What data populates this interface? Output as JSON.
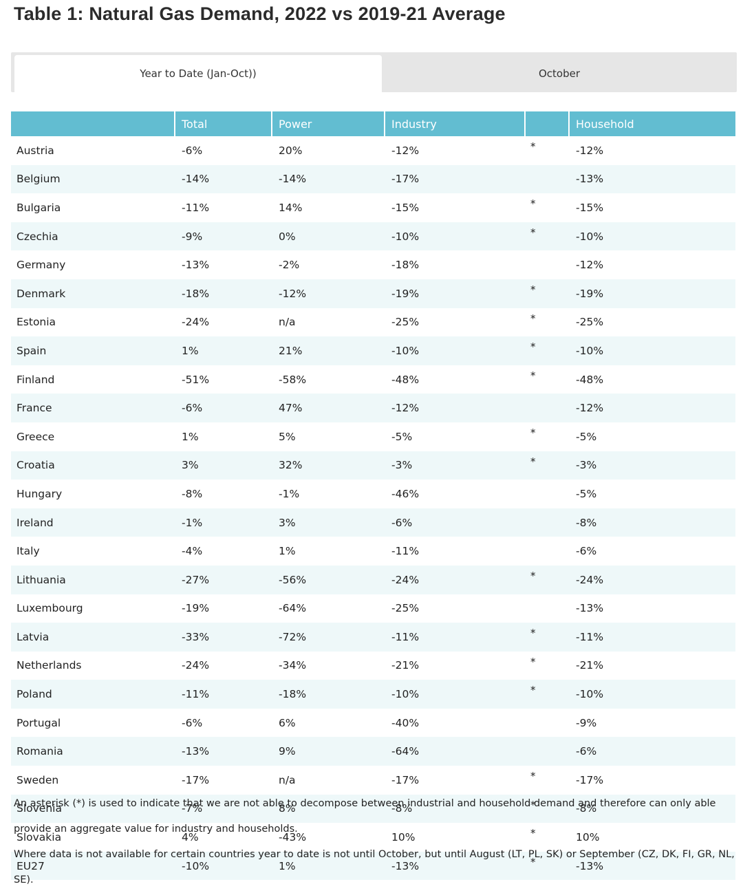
{
  "title": "Table 1: Natural Gas Demand, 2022 vs 2019-21 Average",
  "tabs": [
    {
      "label": "Year to Date (Jan-Oct))",
      "active": true
    },
    {
      "label": "October",
      "active": false
    }
  ],
  "table": {
    "headers": [
      "",
      "Total",
      "Power",
      "Industry",
      "",
      "Household"
    ],
    "rows": [
      [
        "Austria",
        "-6%",
        "20%",
        "-12%",
        "*",
        "-12%"
      ],
      [
        "Belgium",
        "-14%",
        "-14%",
        "-17%",
        "",
        "-13%"
      ],
      [
        "Bulgaria",
        "-11%",
        "14%",
        "-15%",
        "*",
        "-15%"
      ],
      [
        "Czechia",
        "-9%",
        "0%",
        "-10%",
        "*",
        "-10%"
      ],
      [
        "Germany",
        "-13%",
        "-2%",
        "-18%",
        "",
        "-12%"
      ],
      [
        "Denmark",
        "-18%",
        "-12%",
        "-19%",
        "*",
        "-19%"
      ],
      [
        "Estonia",
        "-24%",
        "n/a",
        "-25%",
        "*",
        "-25%"
      ],
      [
        "Spain",
        "1%",
        "21%",
        "-10%",
        "*",
        "-10%"
      ],
      [
        "Finland",
        "-51%",
        "-58%",
        "-48%",
        "*",
        "-48%"
      ],
      [
        "France",
        "-6%",
        "47%",
        "-12%",
        "",
        "-12%"
      ],
      [
        "Greece",
        "1%",
        "5%",
        "-5%",
        "*",
        "-5%"
      ],
      [
        "Croatia",
        "3%",
        "32%",
        "-3%",
        "*",
        "-3%"
      ],
      [
        "Hungary",
        "-8%",
        "-1%",
        "-46%",
        "",
        "-5%"
      ],
      [
        "Ireland",
        "-1%",
        "3%",
        "-6%",
        "",
        "-8%"
      ],
      [
        "Italy",
        "-4%",
        "1%",
        "-11%",
        "",
        "-6%"
      ],
      [
        "Lithuania",
        "-27%",
        "-56%",
        "-24%",
        "*",
        "-24%"
      ],
      [
        "Luxembourg",
        "-19%",
        "-64%",
        "-25%",
        "",
        "-13%"
      ],
      [
        "Latvia",
        "-33%",
        "-72%",
        "-11%",
        "*",
        "-11%"
      ],
      [
        "Netherlands",
        "-24%",
        "-34%",
        "-21%",
        "*",
        "-21%"
      ],
      [
        "Poland",
        "-11%",
        "-18%",
        "-10%",
        "*",
        "-10%"
      ],
      [
        "Portugal",
        "-6%",
        "6%",
        "-40%",
        "",
        "-9%"
      ],
      [
        "Romania",
        "-13%",
        "9%",
        "-64%",
        "",
        "-6%"
      ],
      [
        "Sweden",
        "-17%",
        "n/a",
        "-17%",
        "*",
        "-17%"
      ],
      [
        "Slovenia",
        "-7%",
        "8%",
        "-8%",
        "*",
        "-8%"
      ],
      [
        "Slovakia",
        "4%",
        "-43%",
        "10%",
        "*",
        "10%"
      ],
      [
        "EU27",
        "-10%",
        "1%",
        "-13%",
        "*",
        "-13%"
      ]
    ]
  },
  "notes": [
    "An asterisk (*) is used to indicate that we are not able to decompose between industrial and household demand and therefore can only able",
    "provide an aggregate value for industry and households.",
    "Where data is not available for certain countries year to date is not until October, but until August (LT, PL, SK) or September (CZ, DK, FI, GR, NL, SE)."
  ]
}
